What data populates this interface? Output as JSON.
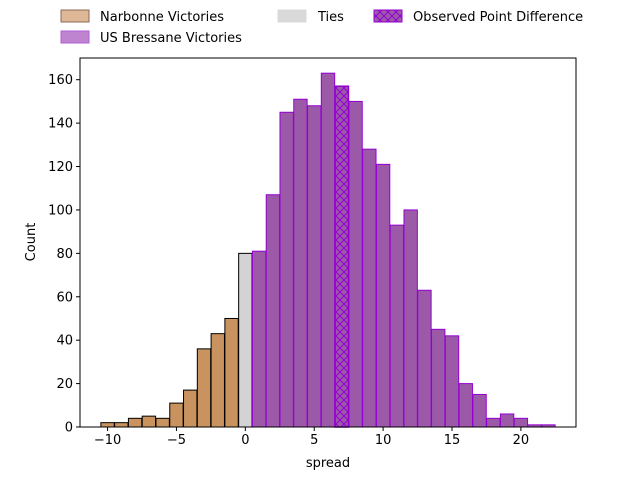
{
  "chart_data": {
    "type": "bar",
    "xlabel": "spread",
    "ylabel": "Count",
    "xlim": [
      -12,
      24
    ],
    "ylim": [
      0,
      170
    ],
    "xticks": [
      -10,
      -5,
      0,
      5,
      10,
      15,
      20
    ],
    "yticks": [
      0,
      20,
      40,
      60,
      80,
      100,
      120,
      140,
      160
    ],
    "grid": false,
    "legend_placement": "top, outside plot",
    "legend": [
      {
        "label": "Narbonne Victories",
        "color": "#deb896",
        "edge": "#8b6a55"
      },
      {
        "label": "US Bressane Victories",
        "color": "#bf84cf",
        "edge": "#b15fd8"
      },
      {
        "label": "Ties",
        "color": "#d9d9d9",
        "edge": "#d9d9d9"
      },
      {
        "label": "Observed Point Difference",
        "color": "#9b59a8",
        "edge": "#9400d3",
        "hatch": true
      }
    ],
    "series": [
      {
        "name": "Narbonne Victories",
        "color": "#c8935e",
        "edge": "#000000",
        "bins": [
          {
            "x": -10,
            "count": 2
          },
          {
            "x": -9,
            "count": 2
          },
          {
            "x": -8,
            "count": 4
          },
          {
            "x": -7,
            "count": 5
          },
          {
            "x": -6,
            "count": 4
          },
          {
            "x": -5,
            "count": 11
          },
          {
            "x": -4,
            "count": 17
          },
          {
            "x": -3,
            "count": 36
          },
          {
            "x": -2,
            "count": 43
          },
          {
            "x": -1,
            "count": 50
          }
        ]
      },
      {
        "name": "Ties",
        "color": "#d3d3d3",
        "edge": "#000000",
        "bins": [
          {
            "x": 0,
            "count": 80
          }
        ]
      },
      {
        "name": "US Bressane Victories",
        "color": "#9b59a8",
        "edge": "#9400d3",
        "bins": [
          {
            "x": 1,
            "count": 81
          },
          {
            "x": 2,
            "count": 107
          },
          {
            "x": 3,
            "count": 145
          },
          {
            "x": 4,
            "count": 151
          },
          {
            "x": 5,
            "count": 148
          },
          {
            "x": 6,
            "count": 163
          },
          {
            "x": 7,
            "count": 157
          },
          {
            "x": 8,
            "count": 150
          },
          {
            "x": 9,
            "count": 128
          },
          {
            "x": 10,
            "count": 121
          },
          {
            "x": 11,
            "count": 93
          },
          {
            "x": 12,
            "count": 100
          },
          {
            "x": 13,
            "count": 63
          },
          {
            "x": 14,
            "count": 45
          },
          {
            "x": 15,
            "count": 42
          },
          {
            "x": 16,
            "count": 20
          },
          {
            "x": 17,
            "count": 15
          },
          {
            "x": 18,
            "count": 4
          },
          {
            "x": 19,
            "count": 6
          },
          {
            "x": 20,
            "count": 4
          },
          {
            "x": 21,
            "count": 1
          },
          {
            "x": 22,
            "count": 1
          }
        ]
      }
    ],
    "observed_point_difference": 7
  }
}
